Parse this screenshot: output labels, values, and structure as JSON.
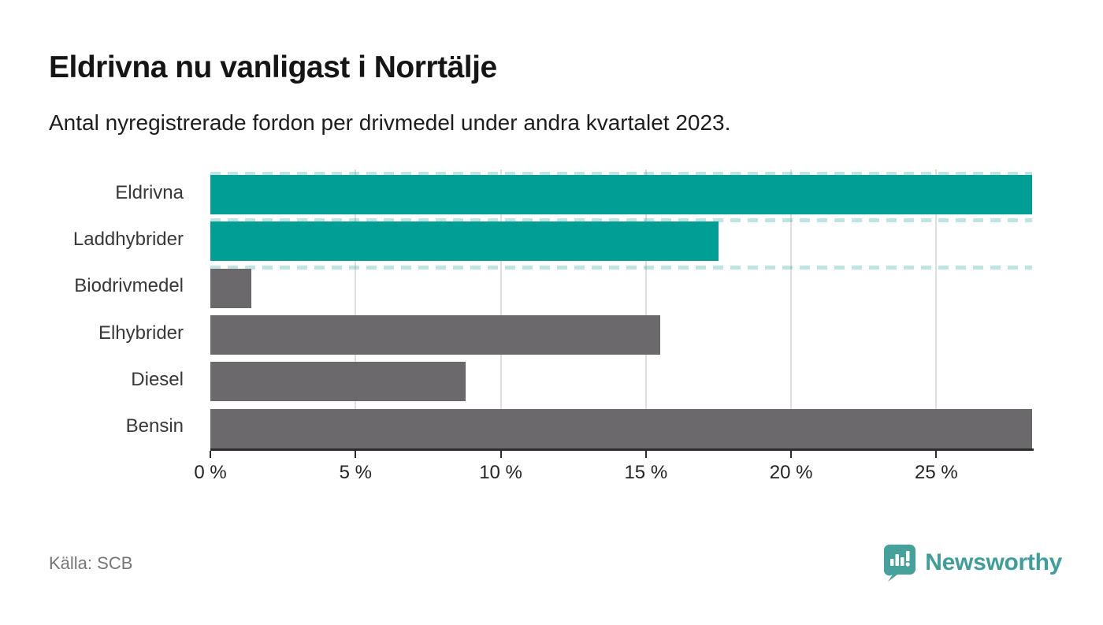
{
  "header": {
    "title": "Eldrivna nu vanligast i Norrtälje",
    "subtitle": "Antal nyregistrerade fordon per drivmedel under andra kvartalet 2023."
  },
  "chart_data": {
    "type": "bar",
    "orientation": "horizontal",
    "title": "Eldrivna nu vanligast i Norrtälje",
    "subtitle": "Antal nyregistrerade fordon per drivmedel under andra kvartalet 2023.",
    "categories": [
      "Eldrivna",
      "Laddhybrider",
      "Biodrivmedel",
      "Elhybrider",
      "Diesel",
      "Bensin"
    ],
    "values": [
      28.3,
      17.5,
      1.4,
      15.5,
      8.8,
      28.3
    ],
    "unit": "%",
    "highlighted": [
      true,
      true,
      false,
      false,
      false,
      false
    ],
    "colors": {
      "highlight": "#009E94",
      "default": "#6C696C"
    },
    "xlim": [
      0,
      28.3
    ],
    "x_ticks": [
      0,
      5,
      10,
      15,
      20,
      25
    ],
    "x_tick_labels": [
      "0 %",
      "5 %",
      "10 %",
      "15 %",
      "20 %",
      "25 %"
    ],
    "grid": "vertical",
    "legend": "none"
  },
  "footer": {
    "source": "Källa: SCB",
    "brand": "Newsworthy"
  }
}
